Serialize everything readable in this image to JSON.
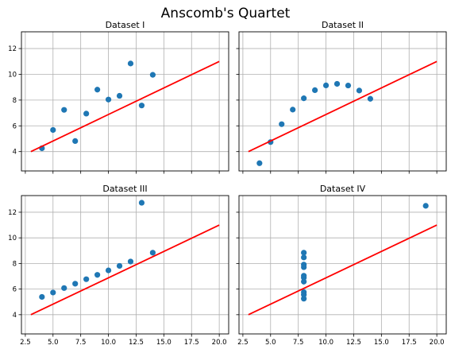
{
  "suptitle": "Anscomb's Quartet",
  "colors": {
    "points": "#1f77b4",
    "fit_line": "#ff0000",
    "grid": "#b0b0b0"
  },
  "chart_data": [
    {
      "type": "scatter",
      "title": "Dataset I",
      "xlim": [
        2.15,
        20.85
      ],
      "ylim": [
        2.5,
        13.3
      ],
      "x": [
        10,
        8,
        13,
        9,
        11,
        14,
        6,
        4,
        12,
        7,
        5
      ],
      "y": [
        8.04,
        6.95,
        7.58,
        8.81,
        8.33,
        9.96,
        7.24,
        4.26,
        10.84,
        4.82,
        5.68
      ],
      "fit_line": {
        "x": [
          3,
          20
        ],
        "y": [
          4.0,
          11.0
        ]
      },
      "xticks": [
        2.5,
        5.0,
        7.5,
        10.0,
        12.5,
        15.0,
        17.5,
        20.0
      ],
      "xtick_labels_shown": false,
      "yticks": [
        4,
        6,
        8,
        10,
        12
      ],
      "ytick_labels": [
        "4",
        "6",
        "8",
        "10",
        "12"
      ],
      "ytick_labels_shown": true,
      "grid": true
    },
    {
      "type": "scatter",
      "title": "Dataset II",
      "xlim": [
        2.15,
        20.85
      ],
      "ylim": [
        2.5,
        13.3
      ],
      "x": [
        10,
        8,
        13,
        9,
        11,
        14,
        6,
        4,
        12,
        7,
        5
      ],
      "y": [
        9.14,
        8.14,
        8.74,
        8.77,
        9.26,
        8.1,
        6.13,
        3.1,
        9.13,
        7.26,
        4.74
      ],
      "fit_line": {
        "x": [
          3,
          20
        ],
        "y": [
          4.0,
          11.0
        ]
      },
      "xticks": [
        2.5,
        5.0,
        7.5,
        10.0,
        12.5,
        15.0,
        17.5,
        20.0
      ],
      "xtick_labels_shown": false,
      "yticks": [
        4,
        6,
        8,
        10,
        12
      ],
      "ytick_labels_shown": false,
      "grid": true
    },
    {
      "type": "scatter",
      "title": "Dataset III",
      "xlim": [
        2.15,
        20.85
      ],
      "ylim": [
        2.5,
        13.3
      ],
      "x": [
        10,
        8,
        13,
        9,
        11,
        14,
        6,
        4,
        12,
        7,
        5
      ],
      "y": [
        7.46,
        6.77,
        12.74,
        7.11,
        7.81,
        8.84,
        6.08,
        5.39,
        8.15,
        6.42,
        5.73
      ],
      "fit_line": {
        "x": [
          3,
          20
        ],
        "y": [
          4.0,
          11.0
        ]
      },
      "xticks": [
        2.5,
        5.0,
        7.5,
        10.0,
        12.5,
        15.0,
        17.5,
        20.0
      ],
      "xtick_labels": [
        "2.5",
        "5.0",
        "7.5",
        "10.0",
        "12.5",
        "15.0",
        "17.5",
        "20.0"
      ],
      "xtick_labels_shown": true,
      "yticks": [
        4,
        6,
        8,
        10,
        12
      ],
      "ytick_labels": [
        "4",
        "6",
        "8",
        "10",
        "12"
      ],
      "ytick_labels_shown": true,
      "grid": true
    },
    {
      "type": "scatter",
      "title": "Dataset IV",
      "xlim": [
        2.15,
        20.85
      ],
      "ylim": [
        2.5,
        13.3
      ],
      "x": [
        8,
        8,
        8,
        8,
        8,
        8,
        8,
        19,
        8,
        8,
        8
      ],
      "y": [
        6.58,
        5.76,
        7.71,
        8.84,
        8.47,
        7.04,
        5.25,
        12.5,
        5.56,
        7.91,
        6.89
      ],
      "fit_line": {
        "x": [
          3,
          20
        ],
        "y": [
          4.0,
          11.0
        ]
      },
      "xticks": [
        2.5,
        5.0,
        7.5,
        10.0,
        12.5,
        15.0,
        17.5,
        20.0
      ],
      "xtick_labels": [
        "2.5",
        "5.0",
        "7.5",
        "10.0",
        "12.5",
        "15.0",
        "17.5",
        "20.0"
      ],
      "xtick_labels_shown": true,
      "yticks": [
        4,
        6,
        8,
        10,
        12
      ],
      "ytick_labels_shown": false,
      "grid": true
    }
  ]
}
